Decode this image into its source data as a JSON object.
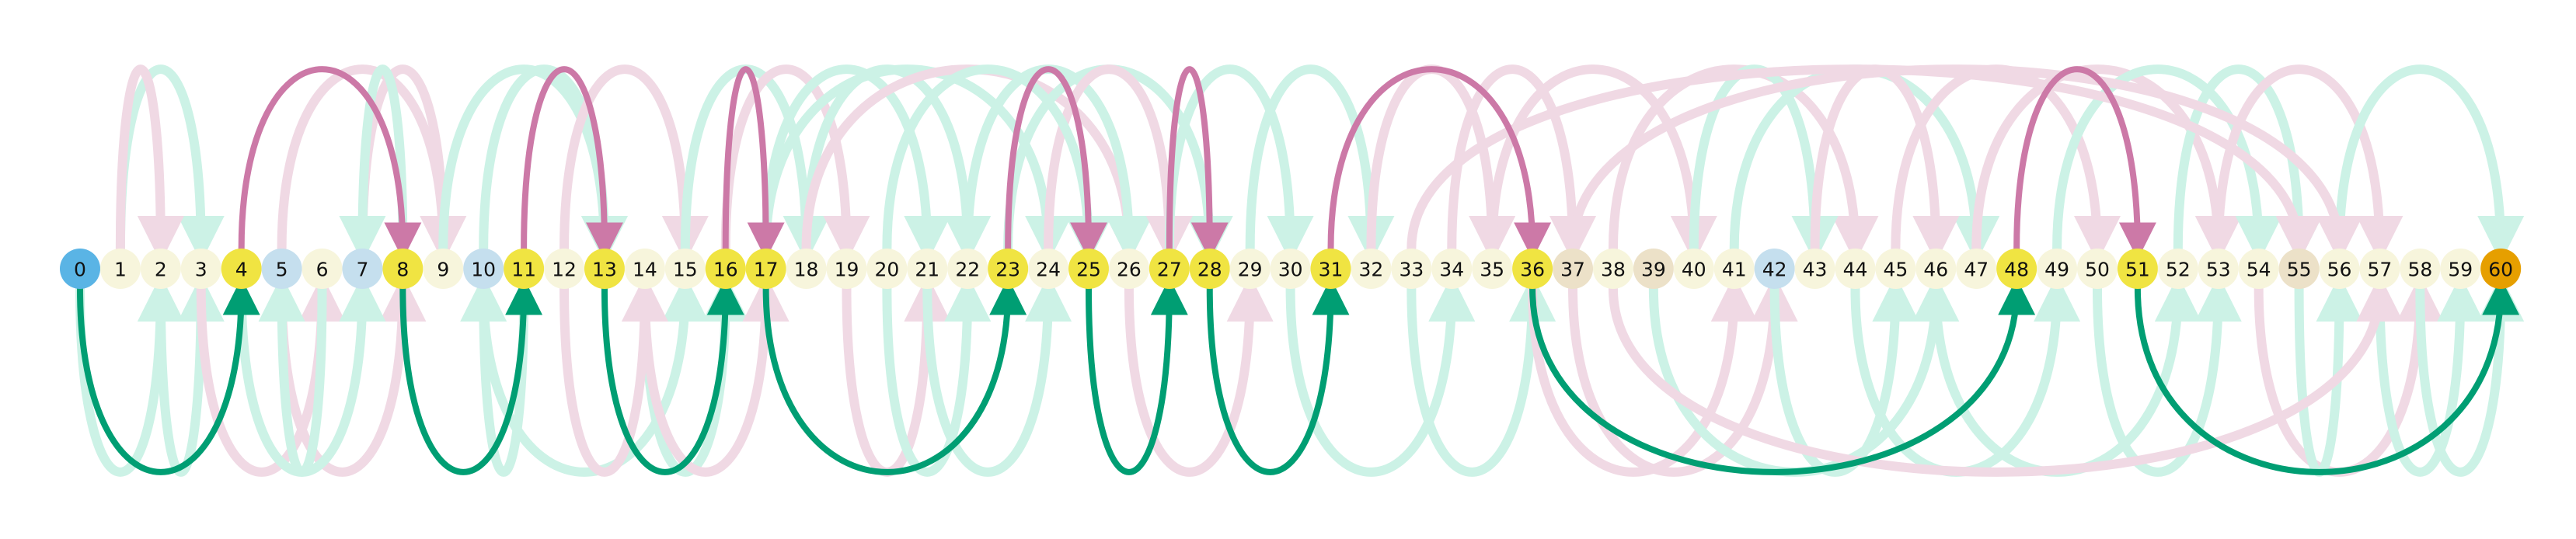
{
  "nodes": [
    {
      "label": "0",
      "kind": "start"
    },
    {
      "label": "1",
      "kind": "plain"
    },
    {
      "label": "2",
      "kind": "plain"
    },
    {
      "label": "3",
      "kind": "plain"
    },
    {
      "label": "4",
      "kind": "path"
    },
    {
      "label": "5",
      "kind": "blue"
    },
    {
      "label": "6",
      "kind": "plain"
    },
    {
      "label": "7",
      "kind": "blue"
    },
    {
      "label": "8",
      "kind": "path"
    },
    {
      "label": "9",
      "kind": "plain"
    },
    {
      "label": "10",
      "kind": "blue"
    },
    {
      "label": "11",
      "kind": "path"
    },
    {
      "label": "12",
      "kind": "plain"
    },
    {
      "label": "13",
      "kind": "path"
    },
    {
      "label": "14",
      "kind": "plain"
    },
    {
      "label": "15",
      "kind": "plain"
    },
    {
      "label": "16",
      "kind": "path"
    },
    {
      "label": "17",
      "kind": "path"
    },
    {
      "label": "18",
      "kind": "plain"
    },
    {
      "label": "19",
      "kind": "plain"
    },
    {
      "label": "20",
      "kind": "plain"
    },
    {
      "label": "21",
      "kind": "plain"
    },
    {
      "label": "22",
      "kind": "plain"
    },
    {
      "label": "23",
      "kind": "path"
    },
    {
      "label": "24",
      "kind": "plain"
    },
    {
      "label": "25",
      "kind": "path"
    },
    {
      "label": "26",
      "kind": "plain"
    },
    {
      "label": "27",
      "kind": "path"
    },
    {
      "label": "28",
      "kind": "path"
    },
    {
      "label": "29",
      "kind": "plain"
    },
    {
      "label": "30",
      "kind": "plain"
    },
    {
      "label": "31",
      "kind": "path"
    },
    {
      "label": "32",
      "kind": "plain"
    },
    {
      "label": "33",
      "kind": "plain"
    },
    {
      "label": "34",
      "kind": "plain"
    },
    {
      "label": "35",
      "kind": "plain"
    },
    {
      "label": "36",
      "kind": "path"
    },
    {
      "label": "37",
      "kind": "tan"
    },
    {
      "label": "38",
      "kind": "plain"
    },
    {
      "label": "39",
      "kind": "tan"
    },
    {
      "label": "40",
      "kind": "plain"
    },
    {
      "label": "41",
      "kind": "plain"
    },
    {
      "label": "42",
      "kind": "blue"
    },
    {
      "label": "43",
      "kind": "plain"
    },
    {
      "label": "44",
      "kind": "plain"
    },
    {
      "label": "45",
      "kind": "plain"
    },
    {
      "label": "46",
      "kind": "plain"
    },
    {
      "label": "47",
      "kind": "plain"
    },
    {
      "label": "48",
      "kind": "path"
    },
    {
      "label": "49",
      "kind": "plain"
    },
    {
      "label": "50",
      "kind": "plain"
    },
    {
      "label": "51",
      "kind": "path"
    },
    {
      "label": "52",
      "kind": "plain"
    },
    {
      "label": "53",
      "kind": "plain"
    },
    {
      "label": "54",
      "kind": "plain"
    },
    {
      "label": "55",
      "kind": "tan"
    },
    {
      "label": "56",
      "kind": "plain"
    },
    {
      "label": "57",
      "kind": "plain"
    },
    {
      "label": "58",
      "kind": "plain"
    },
    {
      "label": "59",
      "kind": "plain"
    },
    {
      "label": "60",
      "kind": "end"
    }
  ],
  "colors": {
    "start": "#5ab4e5",
    "end": "#e69f00",
    "path": "#f0e442",
    "plain": "#f7f5dc",
    "blue": "#c5dfee",
    "tan": "#ece1c8",
    "forward_strong": "#009e73",
    "backward_strong": "#cc79a7",
    "forward_faint": "#ccf2e6",
    "backward_faint": "#f0d9e4"
  },
  "highlighted_edges": [
    {
      "from": 0,
      "to": 4,
      "direction": "forward"
    },
    {
      "from": 4,
      "to": 8,
      "direction": "backward"
    },
    {
      "from": 8,
      "to": 11,
      "direction": "forward"
    },
    {
      "from": 11,
      "to": 13,
      "direction": "backward"
    },
    {
      "from": 13,
      "to": 16,
      "direction": "forward"
    },
    {
      "from": 16,
      "to": 17,
      "direction": "backward"
    },
    {
      "from": 17,
      "to": 23,
      "direction": "forward"
    },
    {
      "from": 23,
      "to": 25,
      "direction": "backward"
    },
    {
      "from": 25,
      "to": 27,
      "direction": "forward"
    },
    {
      "from": 27,
      "to": 28,
      "direction": "backward"
    },
    {
      "from": 28,
      "to": 31,
      "direction": "forward"
    },
    {
      "from": 31,
      "to": 36,
      "direction": "backward"
    },
    {
      "from": 36,
      "to": 48,
      "direction": "forward"
    },
    {
      "from": 48,
      "to": 51,
      "direction": "backward"
    },
    {
      "from": 51,
      "to": 60,
      "direction": "forward"
    }
  ],
  "faint_edges": [
    {
      "from": 1,
      "to": 3,
      "side": "above",
      "direction": "forward"
    },
    {
      "from": 1,
      "to": 2,
      "side": "above",
      "direction": "backward"
    },
    {
      "from": 0,
      "to": 2,
      "side": "below",
      "direction": "forward"
    },
    {
      "from": 2,
      "to": 3,
      "side": "below",
      "direction": "forward"
    },
    {
      "from": 3,
      "to": 6,
      "side": "below",
      "direction": "backward"
    },
    {
      "from": 5,
      "to": 8,
      "side": "below",
      "direction": "backward"
    },
    {
      "from": 6,
      "to": 5,
      "side": "below",
      "direction": "forward"
    },
    {
      "from": 4,
      "to": 7,
      "side": "below",
      "direction": "forward"
    },
    {
      "from": 5,
      "to": 9,
      "side": "above",
      "direction": "backward"
    },
    {
      "from": 7,
      "to": 9,
      "side": "above",
      "direction": "backward"
    },
    {
      "from": 8,
      "to": 7,
      "side": "above",
      "direction": "forward"
    },
    {
      "from": 9,
      "to": 13,
      "side": "above",
      "direction": "forward"
    },
    {
      "from": 10,
      "to": 13,
      "side": "above",
      "direction": "forward"
    },
    {
      "from": 11,
      "to": 10,
      "side": "below",
      "direction": "forward"
    },
    {
      "from": 10,
      "to": 15,
      "side": "below",
      "direction": "forward"
    },
    {
      "from": 12,
      "to": 15,
      "side": "above",
      "direction": "backward"
    },
    {
      "from": 14,
      "to": 16,
      "side": "below",
      "direction": "forward"
    },
    {
      "from": 14,
      "to": 17,
      "side": "below",
      "direction": "backward"
    },
    {
      "from": 15,
      "to": 18,
      "side": "above",
      "direction": "forward"
    },
    {
      "from": 16,
      "to": 19,
      "side": "above",
      "direction": "backward"
    },
    {
      "from": 17,
      "to": 21,
      "side": "above",
      "direction": "forward"
    },
    {
      "from": 17,
      "to": 24,
      "side": "above",
      "direction": "forward"
    },
    {
      "from": 18,
      "to": 22,
      "side": "above",
      "direction": "forward"
    },
    {
      "from": 18,
      "to": 26,
      "side": "above",
      "direction": "backward"
    },
    {
      "from": 19,
      "to": 21,
      "side": "below",
      "direction": "backward"
    },
    {
      "from": 20,
      "to": 22,
      "side": "below",
      "direction": "forward"
    },
    {
      "from": 21,
      "to": 24,
      "side": "below",
      "direction": "forward"
    },
    {
      "from": 22,
      "to": 26,
      "side": "above",
      "direction": "forward"
    },
    {
      "from": 23,
      "to": 28,
      "side": "above",
      "direction": "forward"
    },
    {
      "from": 24,
      "to": 27,
      "side": "above",
      "direction": "backward"
    },
    {
      "from": 26,
      "to": 29,
      "side": "below",
      "direction": "backward"
    },
    {
      "from": 27,
      "to": 30,
      "side": "above",
      "direction": "forward"
    },
    {
      "from": 29,
      "to": 32,
      "side": "above",
      "direction": "forward"
    },
    {
      "from": 30,
      "to": 34,
      "side": "below",
      "direction": "forward"
    },
    {
      "from": 32,
      "to": 35,
      "side": "above",
      "direction": "backward"
    },
    {
      "from": 33,
      "to": 36,
      "side": "below",
      "direction": "forward"
    },
    {
      "from": 34,
      "to": 37,
      "side": "above",
      "direction": "backward"
    },
    {
      "from": 35,
      "to": 40,
      "side": "above",
      "direction": "backward"
    },
    {
      "from": 36,
      "to": 41,
      "side": "below",
      "direction": "backward"
    },
    {
      "from": 37,
      "to": 42,
      "side": "below",
      "direction": "backward"
    },
    {
      "from": 38,
      "to": 44,
      "side": "above",
      "direction": "backward"
    },
    {
      "from": 39,
      "to": 46,
      "side": "below",
      "direction": "forward"
    },
    {
      "from": 40,
      "to": 43,
      "side": "above",
      "direction": "forward"
    },
    {
      "from": 41,
      "to": 47,
      "side": "above",
      "direction": "forward"
    },
    {
      "from": 42,
      "to": 45,
      "side": "below",
      "direction": "forward"
    },
    {
      "from": 43,
      "to": 46,
      "side": "above",
      "direction": "backward"
    },
    {
      "from": 44,
      "to": 49,
      "side": "below",
      "direction": "forward"
    },
    {
      "from": 45,
      "to": 50,
      "side": "above",
      "direction": "backward"
    },
    {
      "from": 46,
      "to": 52,
      "side": "below",
      "direction": "forward"
    },
    {
      "from": 47,
      "to": 53,
      "side": "above",
      "direction": "backward"
    },
    {
      "from": 49,
      "to": 54,
      "side": "above",
      "direction": "forward"
    },
    {
      "from": 50,
      "to": 53,
      "side": "below",
      "direction": "forward"
    },
    {
      "from": 52,
      "to": 55,
      "side": "above",
      "direction": "forward"
    },
    {
      "from": 53,
      "to": 57,
      "side": "above",
      "direction": "backward"
    },
    {
      "from": 54,
      "to": 58,
      "side": "below",
      "direction": "backward"
    },
    {
      "from": 55,
      "to": 56,
      "side": "below",
      "direction": "forward"
    },
    {
      "from": 56,
      "to": 60,
      "side": "above",
      "direction": "forward"
    },
    {
      "from": 57,
      "to": 59,
      "side": "below",
      "direction": "forward"
    },
    {
      "from": 58,
      "to": 60,
      "side": "below",
      "direction": "forward"
    },
    {
      "from": 37,
      "to": 56,
      "side": "above",
      "direction": "backward"
    },
    {
      "from": 33,
      "to": 55,
      "side": "above",
      "direction": "backward"
    },
    {
      "from": 38,
      "to": 57,
      "side": "below",
      "direction": "backward"
    },
    {
      "from": 12,
      "to": 14,
      "side": "below",
      "direction": "backward"
    },
    {
      "from": 20,
      "to": 25,
      "side": "above",
      "direction": "forward"
    }
  ]
}
